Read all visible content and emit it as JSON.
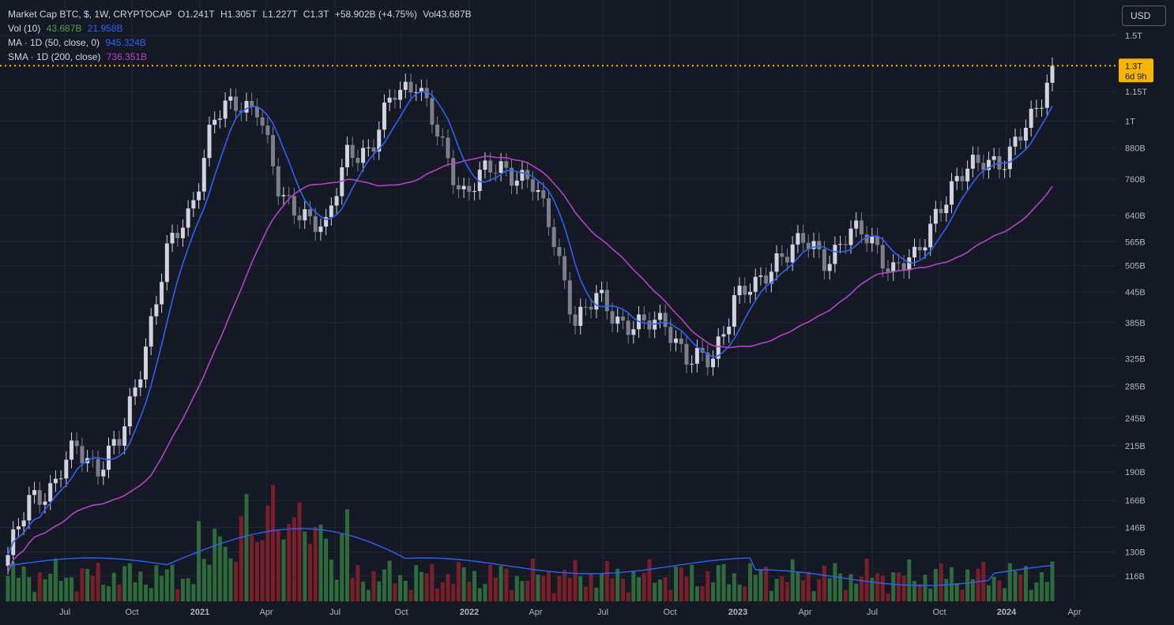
{
  "legend": {
    "symbol": "Market Cap BTC, $, 1W, CRYPTOCAP",
    "open_label": "O",
    "open": "1.241T",
    "high_label": "H",
    "high": "1.305T",
    "low_label": "L",
    "low": "1.227T",
    "close_label": "C",
    "close": "1.3T",
    "change": "+58.902B (+4.75%)",
    "vol_label": "Vol",
    "vol": "43.687B"
  },
  "indicators": {
    "vol": {
      "label": "Vol (10)",
      "value1": "43.687B",
      "value2": "21.958B",
      "color1": "#43a047",
      "color2": "#2962ff"
    },
    "ma": {
      "label": "MA · 1D (50, close, 0)",
      "value": "945.324B",
      "color": "#2962ff"
    },
    "sma": {
      "label": "SMA · 1D (200, close)",
      "value": "736.351B",
      "color": "#b044c8"
    }
  },
  "currency_button": "USD",
  "price_label": {
    "value": "1.3T",
    "countdown": "6d 9h",
    "color": "#f7b500"
  },
  "colors": {
    "up": "#d1d4dc",
    "down": "#7c7f87",
    "vol_up": "#2e6b3a",
    "vol_down": "#7a1f2a",
    "ma": "#2962ff",
    "sma": "#b044c8",
    "bg": "#151924",
    "grid": "#222733"
  },
  "chart_data": {
    "type": "candlestick",
    "title": "Market Cap BTC, $, 1W, CRYPTOCAP",
    "scale": "log",
    "y_ticks": [
      "1.5T",
      "1.15T",
      "1T",
      "880B",
      "760B",
      "640B",
      "565B",
      "505B",
      "445B",
      "385B",
      "325B",
      "285B",
      "245B",
      "215B",
      "190B",
      "166B",
      "146B",
      "130B",
      "116B"
    ],
    "x_ticks": [
      "Jul",
      "Oct",
      "2021",
      "Apr",
      "Jul",
      "Oct",
      "2022",
      "Apr",
      "Jul",
      "Oct",
      "2023",
      "Apr",
      "Jul",
      "Oct",
      "2024",
      "Apr"
    ],
    "y_range_B": [
      105,
      1600
    ],
    "last_close_B": 1300,
    "series": [
      {
        "name": "MA · 1D (50, close, 0)",
        "last": 945.324
      },
      {
        "name": "SMA · 1D (200, close)",
        "last": 736.351
      },
      {
        "name": "Vol (10)",
        "last": 43.687
      }
    ],
    "weekly_close_path_B": [
      [
        "2020-05",
        125
      ],
      [
        "2020-06",
        172
      ],
      [
        "2020-07",
        175
      ],
      [
        "2020-08",
        215
      ],
      [
        "2020-09",
        195
      ],
      [
        "2020-10",
        220
      ],
      [
        "2020-11",
        340
      ],
      [
        "2020-12",
        530
      ],
      [
        "2021-01",
        650
      ],
      [
        "2021-02",
        1000
      ],
      [
        "2021-03",
        1080
      ],
      [
        "2021-04",
        1090
      ],
      [
        "2021-05",
        680
      ],
      [
        "2021-06",
        660
      ],
      [
        "2021-07",
        590
      ],
      [
        "2021-08",
        890
      ],
      [
        "2021-09",
        860
      ],
      [
        "2021-10",
        1150
      ],
      [
        "2021-11",
        1220
      ],
      [
        "2021-12",
        900
      ],
      [
        "2022-01",
        720
      ],
      [
        "2022-02",
        780
      ],
      [
        "2022-03",
        800
      ],
      [
        "2022-04",
        760
      ],
      [
        "2022-05",
        580
      ],
      [
        "2022-06",
        390
      ],
      [
        "2022-07",
        430
      ],
      [
        "2022-08",
        390
      ],
      [
        "2022-09",
        375
      ],
      [
        "2022-10",
        390
      ],
      [
        "2022-11",
        320
      ],
      [
        "2022-12",
        320
      ],
      [
        "2023-01",
        440
      ],
      [
        "2023-02",
        450
      ],
      [
        "2023-03",
        540
      ],
      [
        "2023-04",
        560
      ],
      [
        "2023-05",
        520
      ],
      [
        "2023-06",
        590
      ],
      [
        "2023-07",
        570
      ],
      [
        "2023-08",
        500
      ],
      [
        "2023-09",
        515
      ],
      [
        "2023-10",
        680
      ],
      [
        "2023-11",
        760
      ],
      [
        "2023-12",
        850
      ],
      [
        "2024-01",
        820
      ],
      [
        "2024-02",
        1000
      ],
      [
        "2024-03",
        1300
      ]
    ]
  }
}
